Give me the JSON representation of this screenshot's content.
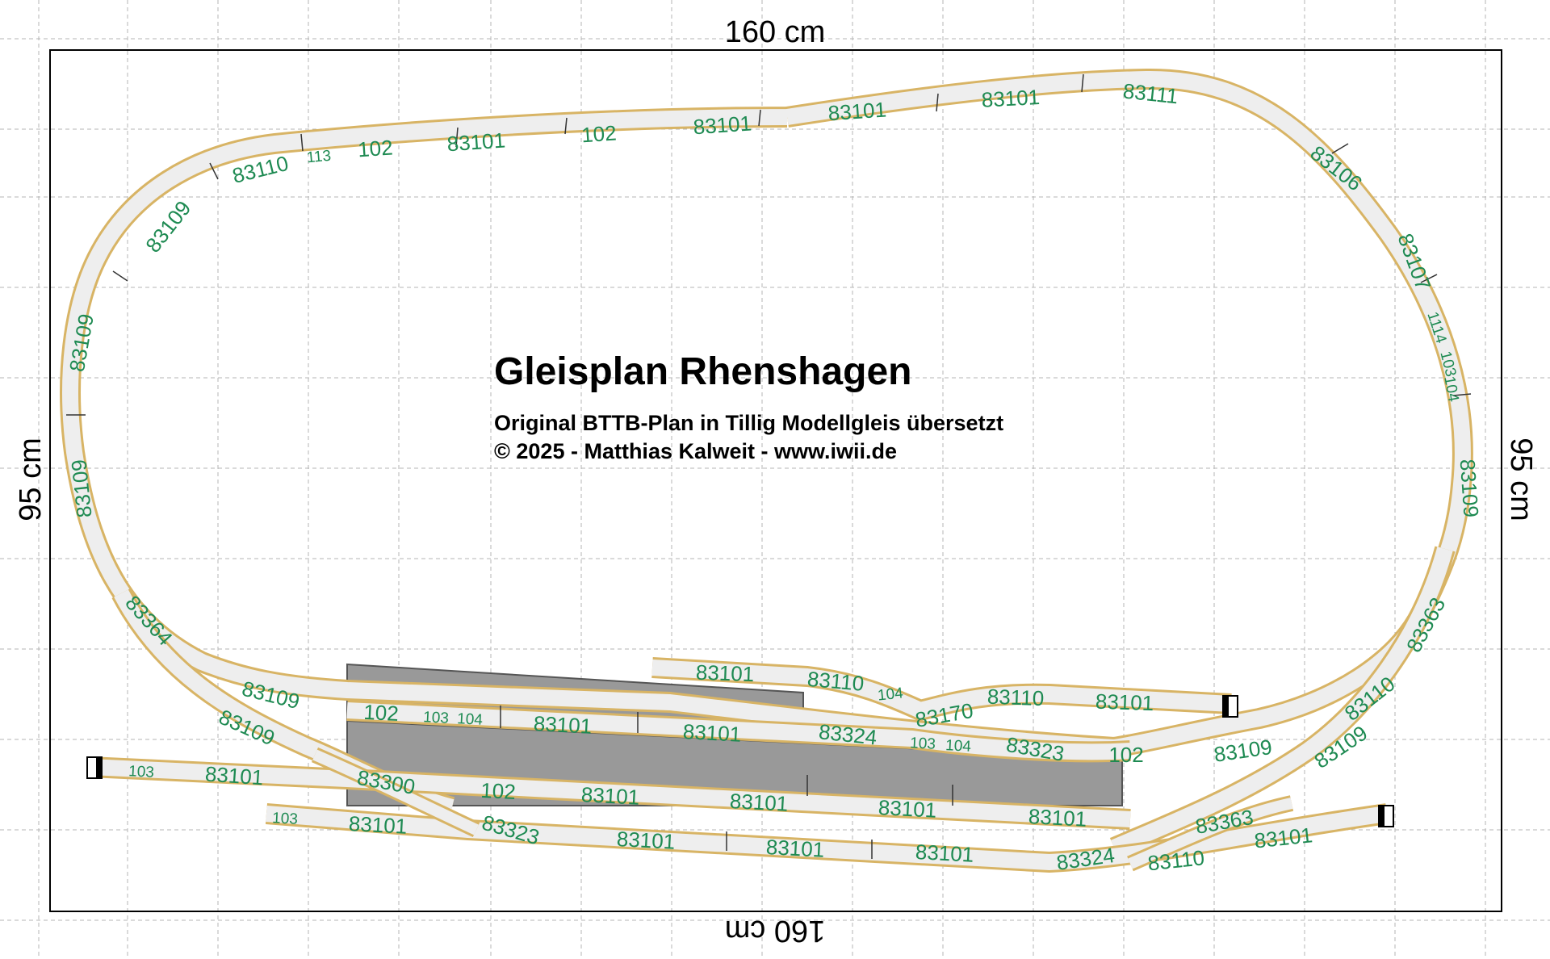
{
  "dimensions": {
    "top": "160 cm",
    "bottom": "160 cm",
    "left": "95 cm",
    "right": "95 cm"
  },
  "title": "Gleisplan Rhenshagen",
  "subtitle_lines": [
    "Original BTTB-Plan in Tillig Modellgleis übersetzt",
    "© 2025 - Matthias Kalweit - www.iwii.de"
  ],
  "colors": {
    "grid": "#b5b5b5",
    "track_fill": "#eeeeee",
    "track_edge": "#d8b465",
    "label": "#1e8a52",
    "platform": "#999999"
  },
  "track_labels": [
    {
      "text": "83101"
    },
    {
      "text": "102"
    },
    {
      "text": "83101"
    },
    {
      "text": "102"
    },
    {
      "text": "113"
    },
    {
      "text": "83110"
    },
    {
      "text": "83109"
    },
    {
      "text": "83109"
    },
    {
      "text": "83109"
    },
    {
      "text": "83101"
    },
    {
      "text": "83101"
    },
    {
      "text": "83111"
    },
    {
      "text": "83106"
    },
    {
      "text": "83107"
    },
    {
      "text": "1114"
    },
    {
      "text": "103"
    },
    {
      "text": "104"
    },
    {
      "text": "83109"
    },
    {
      "text": "83363"
    },
    {
      "text": "83110"
    },
    {
      "text": "83109"
    },
    {
      "text": "83364"
    },
    {
      "text": "83109"
    },
    {
      "text": "83109"
    },
    {
      "text": "83101"
    },
    {
      "text": "83110"
    },
    {
      "text": "104"
    },
    {
      "text": "83170"
    },
    {
      "text": "83110"
    },
    {
      "text": "83101"
    },
    {
      "text": "102"
    },
    {
      "text": "103"
    },
    {
      "text": "104"
    },
    {
      "text": "83101"
    },
    {
      "text": "83101"
    },
    {
      "text": "83324"
    },
    {
      "text": "103"
    },
    {
      "text": "104"
    },
    {
      "text": "83323"
    },
    {
      "text": "102"
    },
    {
      "text": "83109"
    },
    {
      "text": "103"
    },
    {
      "text": "83101"
    },
    {
      "text": "83300"
    },
    {
      "text": "102"
    },
    {
      "text": "83101"
    },
    {
      "text": "83101"
    },
    {
      "text": "83101"
    },
    {
      "text": "83101"
    },
    {
      "text": "103"
    },
    {
      "text": "83101"
    },
    {
      "text": "83323"
    },
    {
      "text": "83101"
    },
    {
      "text": "83101"
    },
    {
      "text": "83101"
    },
    {
      "text": "83324"
    },
    {
      "text": "83363"
    },
    {
      "text": "83110"
    },
    {
      "text": "83101"
    }
  ]
}
